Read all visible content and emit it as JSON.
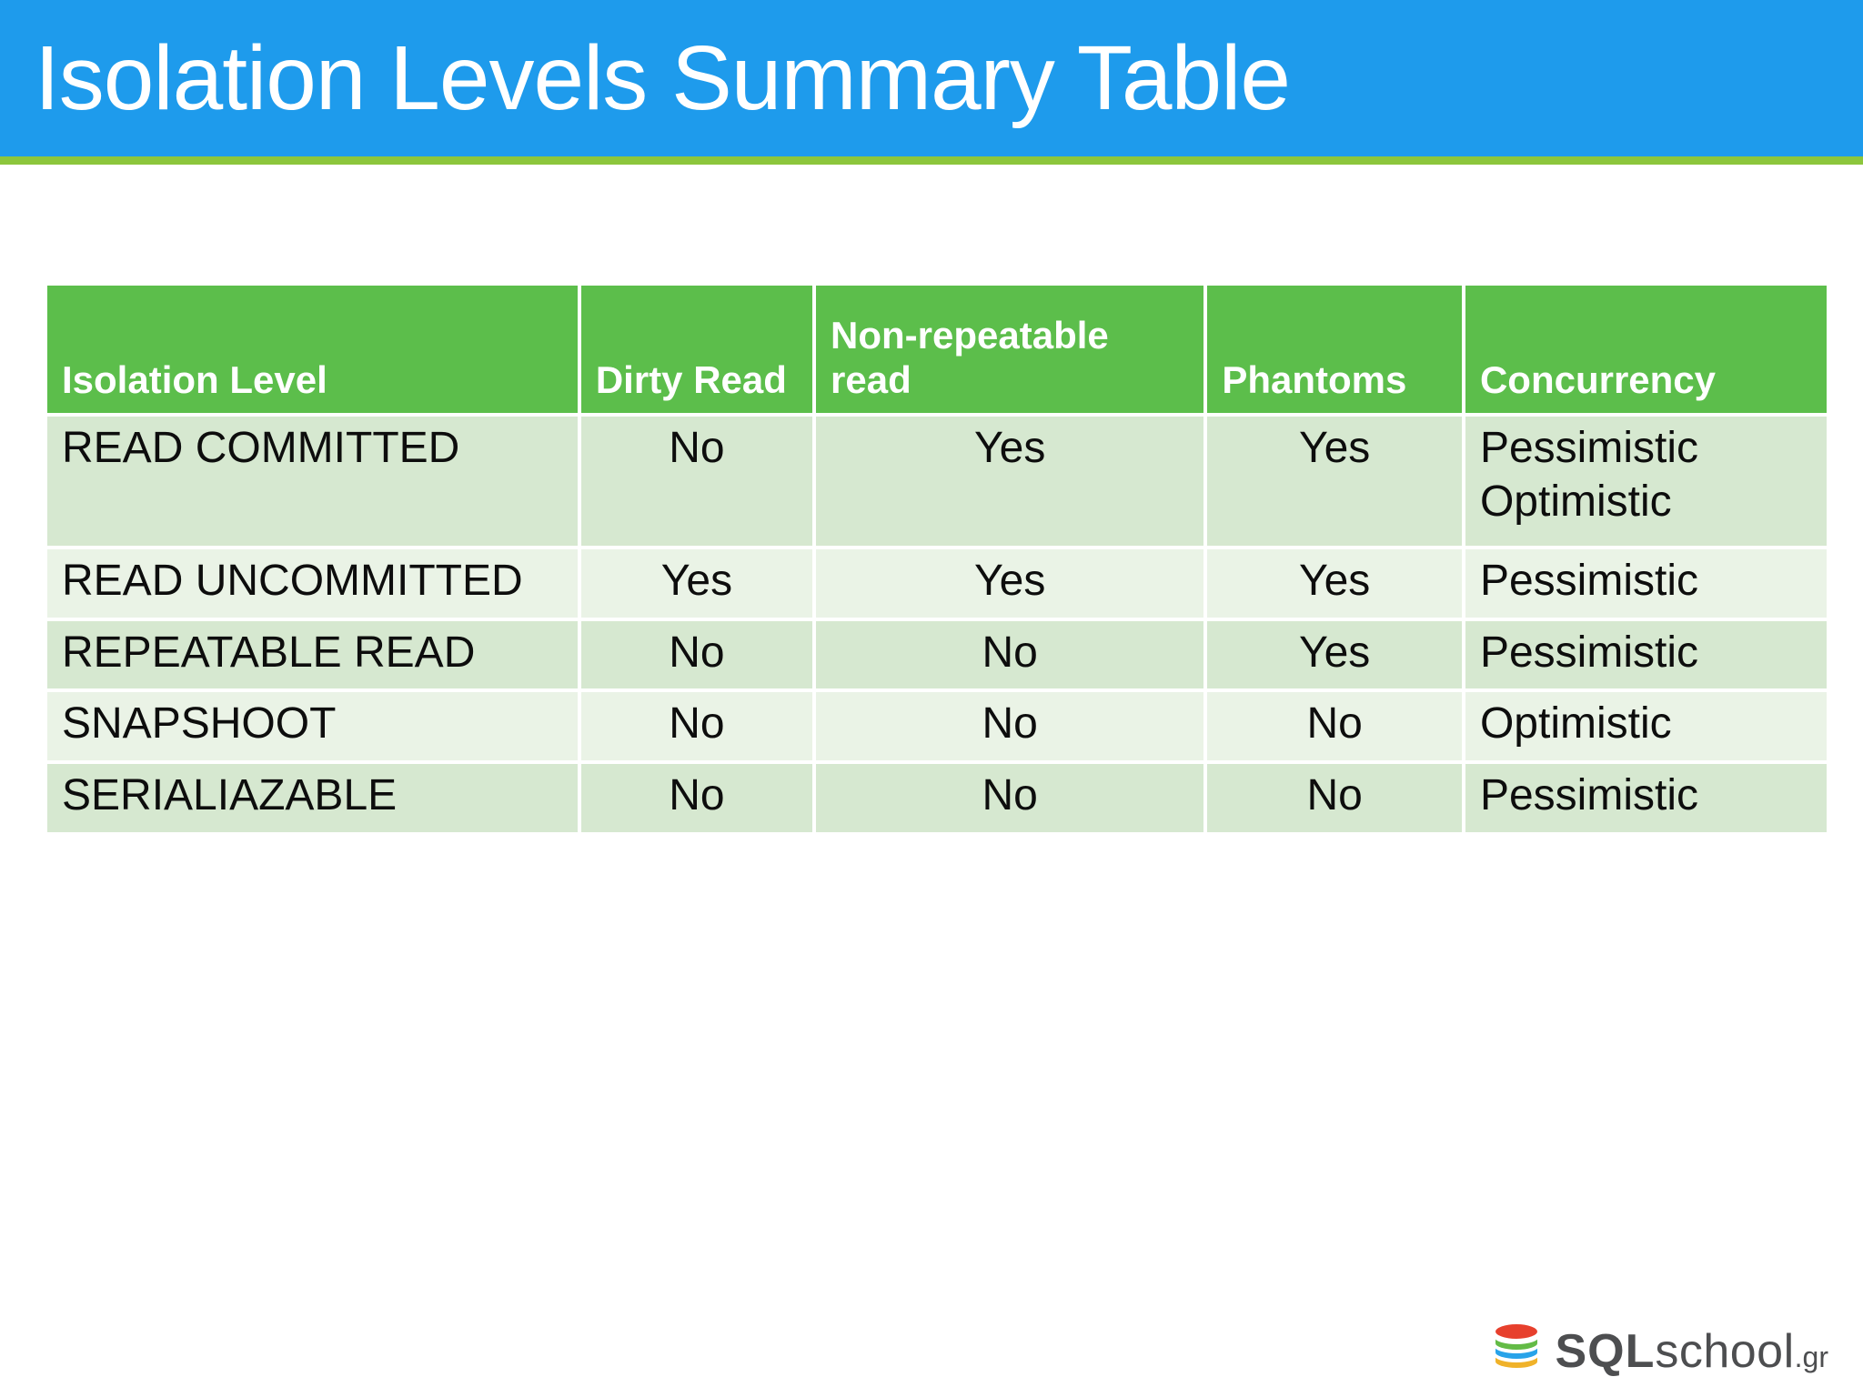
{
  "slide": {
    "title": "Isolation Levels Summary Table"
  },
  "colors": {
    "title_bar_blue": "#1E9BEC",
    "accent_green_rule": "#8CC63C",
    "table_header_green": "#5CBE4B",
    "row_dark_green": "#D6E8D0",
    "row_light_green": "#EAF3E6",
    "logo_gray": "#4D4E50"
  },
  "table": {
    "headers": [
      "Isolation Level",
      "Dirty Read",
      "Non-repeatable read",
      "Phantoms",
      "Concurrency"
    ],
    "rows": [
      {
        "isolation_level": "READ COMMITTED",
        "dirty_read": "No",
        "non_repeatable_read": "Yes",
        "phantoms": "Yes",
        "concurrency": "Pessimistic\nOptimistic"
      },
      {
        "isolation_level": "READ UNCOMMITTED",
        "dirty_read": "Yes",
        "non_repeatable_read": "Yes",
        "phantoms": "Yes",
        "concurrency": "Pessimistic"
      },
      {
        "isolation_level": "REPEATABLE READ",
        "dirty_read": "No",
        "non_repeatable_read": "No",
        "phantoms": "Yes",
        "concurrency": "Pessimistic"
      },
      {
        "isolation_level": "SNAPSHOOT",
        "dirty_read": "No",
        "non_repeatable_read": "No",
        "phantoms": "No",
        "concurrency": "Optimistic"
      },
      {
        "isolation_level": "SERIALIAZABLE",
        "dirty_read": "No",
        "non_repeatable_read": "No",
        "phantoms": "No",
        "concurrency": "Pessimistic"
      }
    ]
  },
  "logo": {
    "sql": "SQL",
    "school": "school",
    "tld": ".gr"
  }
}
